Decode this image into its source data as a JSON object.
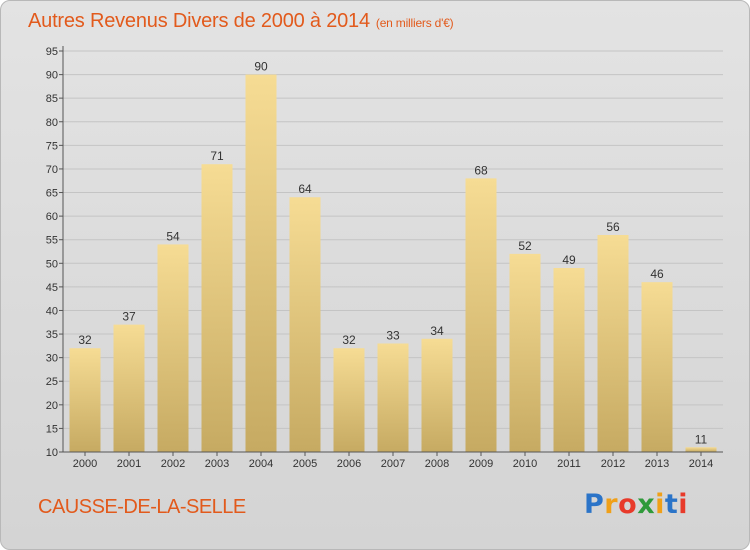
{
  "title": "Autres Revenus Divers de 2000 à 2014",
  "subtitle": "(en milliers d'€)",
  "location": "CAUSSE-DE-LA-SELLE",
  "brand": {
    "letters": [
      "P",
      "r",
      "o",
      "x",
      "i",
      "t",
      "i"
    ],
    "colors": [
      "#2b74c8",
      "#f0a018",
      "#e83a2a",
      "#2f9a3a",
      "#f0a018",
      "#2b74c8",
      "#e83a2a"
    ]
  },
  "colors": {
    "title": "#e25a1c",
    "bar_top": "#f6dc94",
    "bar_bottom": "#c6aa62",
    "grid": "#c4c4c4"
  },
  "chart_data": {
    "type": "bar",
    "categories": [
      "2000",
      "2001",
      "2002",
      "2003",
      "2004",
      "2005",
      "2006",
      "2007",
      "2008",
      "2009",
      "2010",
      "2011",
      "2012",
      "2013",
      "2014"
    ],
    "values": [
      32,
      37,
      54,
      71,
      90,
      64,
      32,
      33,
      34,
      68,
      52,
      49,
      56,
      46,
      11
    ],
    "title": "Autres Revenus Divers de 2000 à 2014",
    "ylim": [
      10,
      95
    ],
    "yticks": [
      10,
      15,
      20,
      25,
      30,
      35,
      40,
      45,
      50,
      55,
      60,
      65,
      70,
      75,
      80,
      85,
      90,
      95
    ],
    "grid": true,
    "data_labels": true
  }
}
